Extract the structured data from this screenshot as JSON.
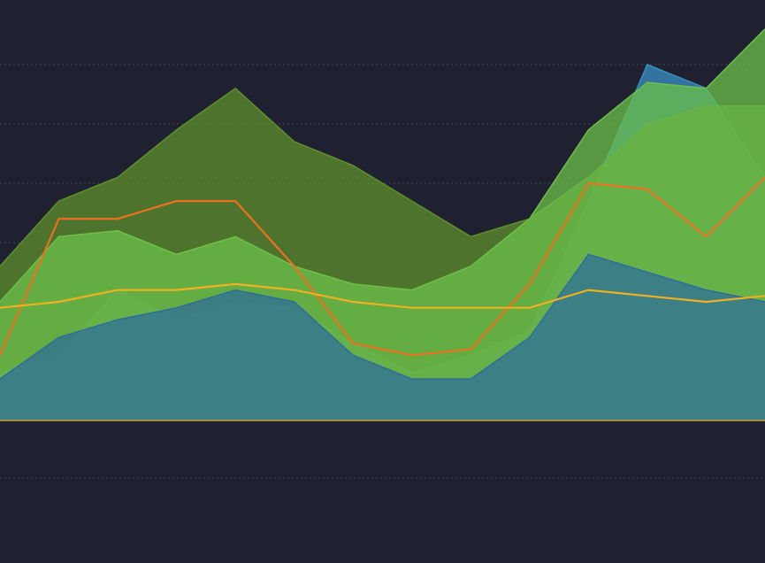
{
  "chart_data": {
    "type": "area",
    "categories": [
      null,
      null,
      null,
      null,
      null,
      null,
      null,
      null,
      null,
      null,
      null,
      null,
      null,
      null
    ],
    "ylim": [
      0,
      7
    ],
    "yticks": [
      0,
      1,
      3,
      4,
      5,
      6
    ],
    "grid": true,
    "series": [
      {
        "color": "#3a8fc4",
        "fill": true,
        "values": [
          0.8,
          1.1,
          2.2,
          1.7,
          2.0,
          1.9,
          1.3,
          0.8,
          1.1,
          1.5,
          3.7,
          6.0,
          5.6,
          4.1
        ]
      },
      {
        "color": "#5f8f2c",
        "fill": true,
        "values": [
          2.6,
          3.7,
          4.1,
          4.9,
          5.6,
          4.7,
          4.3,
          3.7,
          3.1,
          3.4,
          4.1,
          5.0,
          5.3,
          5.3
        ]
      },
      {
        "color": "#6cc04a",
        "fill": true,
        "values": [
          2.0,
          3.1,
          3.2,
          2.8,
          3.1,
          2.6,
          2.3,
          2.2,
          2.6,
          3.4,
          4.9,
          5.7,
          5.6,
          6.6
        ]
      },
      {
        "color": "#2f6d9a",
        "fill": true,
        "values": [
          0.7,
          1.4,
          1.7,
          1.9,
          2.2,
          2.0,
          1.1,
          0.7,
          0.7,
          1.4,
          2.8,
          2.5,
          2.2,
          2.0
        ]
      },
      {
        "color": "#f07020",
        "fill": false,
        "values": [
          1.1,
          3.4,
          3.4,
          3.7,
          3.7,
          2.6,
          1.3,
          1.1,
          1.2,
          2.3,
          4.0,
          3.9,
          3.1,
          4.1
        ]
      },
      {
        "color": "#f0b020",
        "fill": false,
        "values": [
          1.9,
          2.0,
          2.2,
          2.2,
          2.3,
          2.2,
          2.0,
          1.9,
          1.9,
          1.9,
          2.2,
          2.1,
          2.0,
          2.1
        ]
      }
    ]
  }
}
